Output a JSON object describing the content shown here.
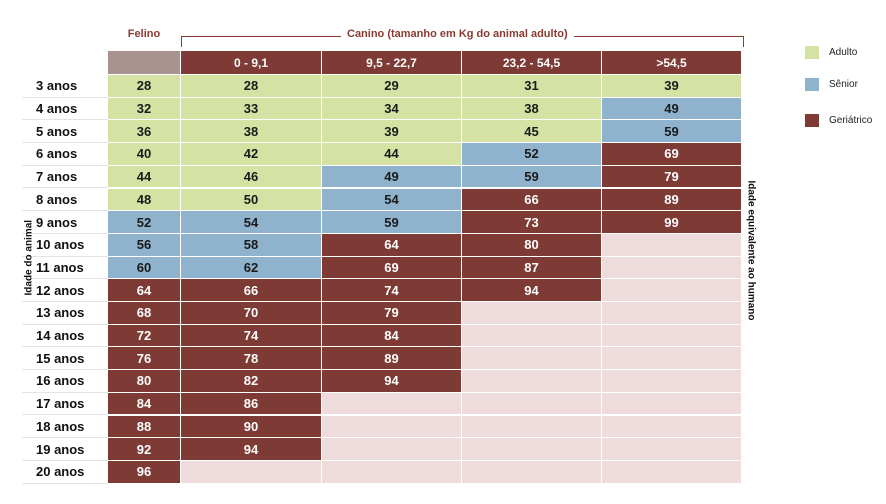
{
  "labels": {
    "feline": "Felino",
    "canine": "Canino (tamanho em Kg do animal adulto)",
    "y_axis": "Idade do animal",
    "right_axis": "Idade equivalente ao humano"
  },
  "colors": {
    "adult": "#d4e3a4",
    "senior": "#8fb3cc",
    "geriatric": "#7e3a35",
    "empty": "#eddcdb",
    "header": "#7e3a35",
    "feline_header": "#a99391"
  },
  "legend": [
    {
      "label": "Adulto",
      "category": "adult"
    },
    {
      "label": "Sênior",
      "category": "senior"
    },
    {
      "label": "Geriátrico",
      "category": "geriatric"
    }
  ],
  "table": {
    "headers": [
      "0 - 9,1",
      "9,5 - 22,7",
      "23,2 - 54,5",
      ">54,5"
    ],
    "rows": [
      {
        "age": "3 anos",
        "values": [
          "28",
          "28",
          "29",
          "31",
          "39"
        ],
        "cats": [
          "a",
          "a",
          "a",
          "a",
          "a"
        ]
      },
      {
        "age": "4 anos",
        "values": [
          "32",
          "33",
          "34",
          "38",
          "49"
        ],
        "cats": [
          "a",
          "a",
          "a",
          "a",
          "s"
        ]
      },
      {
        "age": "5 anos",
        "values": [
          "36",
          "38",
          "39",
          "45",
          "59"
        ],
        "cats": [
          "a",
          "a",
          "a",
          "a",
          "s"
        ]
      },
      {
        "age": "6 anos",
        "values": [
          "40",
          "42",
          "44",
          "52",
          "69"
        ],
        "cats": [
          "a",
          "a",
          "a",
          "s",
          "g"
        ]
      },
      {
        "age": "7 anos",
        "values": [
          "44",
          "46",
          "49",
          "59",
          "79"
        ],
        "cats": [
          "a",
          "a",
          "s",
          "s",
          "g"
        ]
      },
      {
        "age": "8 anos",
        "values": [
          "48",
          "50",
          "54",
          "66",
          "89"
        ],
        "cats": [
          "a",
          "a",
          "s",
          "g",
          "g"
        ]
      },
      {
        "age": "9 anos",
        "values": [
          "52",
          "54",
          "59",
          "73",
          "99"
        ],
        "cats": [
          "s",
          "s",
          "s",
          "g",
          "g"
        ]
      },
      {
        "age": "10 anos",
        "values": [
          "56",
          "58",
          "64",
          "80",
          ""
        ],
        "cats": [
          "s",
          "s",
          "g",
          "g",
          "e"
        ]
      },
      {
        "age": "11 anos",
        "values": [
          "60",
          "62",
          "69",
          "87",
          ""
        ],
        "cats": [
          "s",
          "s",
          "g",
          "g",
          "e"
        ]
      },
      {
        "age": "12 anos",
        "values": [
          "64",
          "66",
          "74",
          "94",
          ""
        ],
        "cats": [
          "g",
          "g",
          "g",
          "g",
          "e"
        ]
      },
      {
        "age": "13 anos",
        "values": [
          "68",
          "70",
          "79",
          "",
          ""
        ],
        "cats": [
          "g",
          "g",
          "g",
          "e",
          "e"
        ]
      },
      {
        "age": "14 anos",
        "values": [
          "72",
          "74",
          "84",
          "",
          ""
        ],
        "cats": [
          "g",
          "g",
          "g",
          "e",
          "e"
        ]
      },
      {
        "age": "15 anos",
        "values": [
          "76",
          "78",
          "89",
          "",
          ""
        ],
        "cats": [
          "g",
          "g",
          "g",
          "e",
          "e"
        ]
      },
      {
        "age": "16 anos",
        "values": [
          "80",
          "82",
          "94",
          "",
          ""
        ],
        "cats": [
          "g",
          "g",
          "g",
          "e",
          "e"
        ]
      },
      {
        "age": "17 anos",
        "values": [
          "84",
          "86",
          "",
          "",
          ""
        ],
        "cats": [
          "g",
          "g",
          "e",
          "e",
          "e"
        ]
      },
      {
        "age": "18 anos",
        "values": [
          "88",
          "90",
          "",
          "",
          ""
        ],
        "cats": [
          "g",
          "g",
          "e",
          "e",
          "e"
        ]
      },
      {
        "age": "19 anos",
        "values": [
          "92",
          "94",
          "",
          "",
          ""
        ],
        "cats": [
          "g",
          "g",
          "e",
          "e",
          "e"
        ]
      },
      {
        "age": "20 anos",
        "values": [
          "96",
          "",
          "",
          "",
          ""
        ],
        "cats": [
          "g",
          "e",
          "e",
          "e",
          "e"
        ]
      }
    ]
  }
}
